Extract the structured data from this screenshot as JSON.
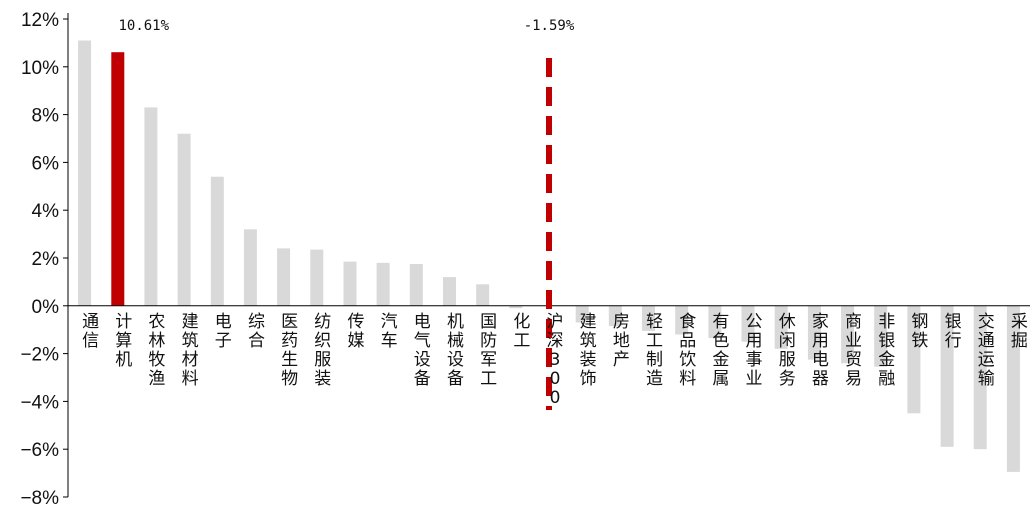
{
  "chart_data": {
    "type": "bar",
    "title": "",
    "xlabel": "",
    "ylabel": "",
    "ylim": [
      -8,
      12
    ],
    "y_ticks": [
      "12%",
      "10%",
      "8%",
      "6%",
      "4%",
      "2%",
      "0%",
      "−2%",
      "−4%",
      "−6%",
      "−8%"
    ],
    "grid": false,
    "legend": "none",
    "colors": {
      "default": "#d9d9d9",
      "highlight": "#c00000",
      "axis": "#000000"
    },
    "highlight_category": "计算机",
    "reference": {
      "category": "沪深300",
      "value": -1.59,
      "label": "-1.59%",
      "style": "dashed",
      "color": "#c00000"
    },
    "data_labels": [
      {
        "category": "计算机",
        "text": "10.61%"
      }
    ],
    "categories": [
      "通信",
      "计算机",
      "农林牧渔",
      "建筑材料",
      "电子",
      "综合",
      "医药生物",
      "纺织服装",
      "传媒",
      "汽车",
      "电气设备",
      "机械设备",
      "国防军工",
      "化工",
      "沪深300",
      "建筑装饰",
      "房地产",
      "轻工制造",
      "食品饮料",
      "有色金属",
      "公用事业",
      "休闲服务",
      "家用电器",
      "商业贸易",
      "非银金融",
      "钢铁",
      "银行",
      "交通运输",
      "采掘"
    ],
    "values": [
      11.1,
      10.61,
      8.3,
      7.2,
      5.4,
      3.2,
      2.4,
      2.35,
      1.85,
      1.8,
      1.75,
      1.2,
      0.9,
      -0.1,
      -1.59,
      -0.7,
      -0.85,
      -1.05,
      -1.2,
      -1.35,
      -1.5,
      -1.8,
      -2.25,
      -2.4,
      -2.55,
      -4.5,
      -5.9,
      -6.0,
      -6.95
    ]
  }
}
